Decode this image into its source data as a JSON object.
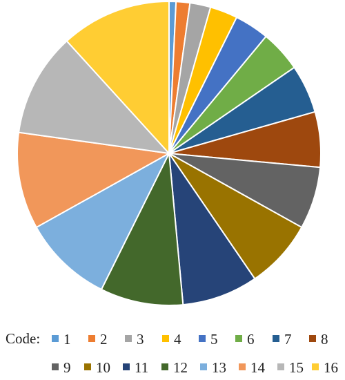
{
  "chart_data": {
    "type": "pie",
    "title": "",
    "start_angle_deg": 0,
    "direction": "clockwise",
    "slice_border": "#ffffff",
    "legend": {
      "title": "Code:",
      "placement": "bottom"
    },
    "categories": [
      "1",
      "2",
      "3",
      "4",
      "5",
      "6",
      "7",
      "8",
      "9",
      "10",
      "11",
      "12",
      "13",
      "14",
      "15",
      "16"
    ],
    "values": [
      1,
      2,
      3,
      4,
      5,
      6,
      7,
      8,
      9,
      10,
      11,
      12,
      13,
      14,
      15,
      16
    ],
    "colors": [
      "#5B9BD5",
      "#ED7D31",
      "#A5A5A5",
      "#FFC000",
      "#4472C4",
      "#70AD47",
      "#255E91",
      "#9E480E",
      "#636363",
      "#997300",
      "#264478",
      "#43682B",
      "#7CAFDD",
      "#F1975A",
      "#B7B7B7",
      "#FFCD33"
    ]
  }
}
